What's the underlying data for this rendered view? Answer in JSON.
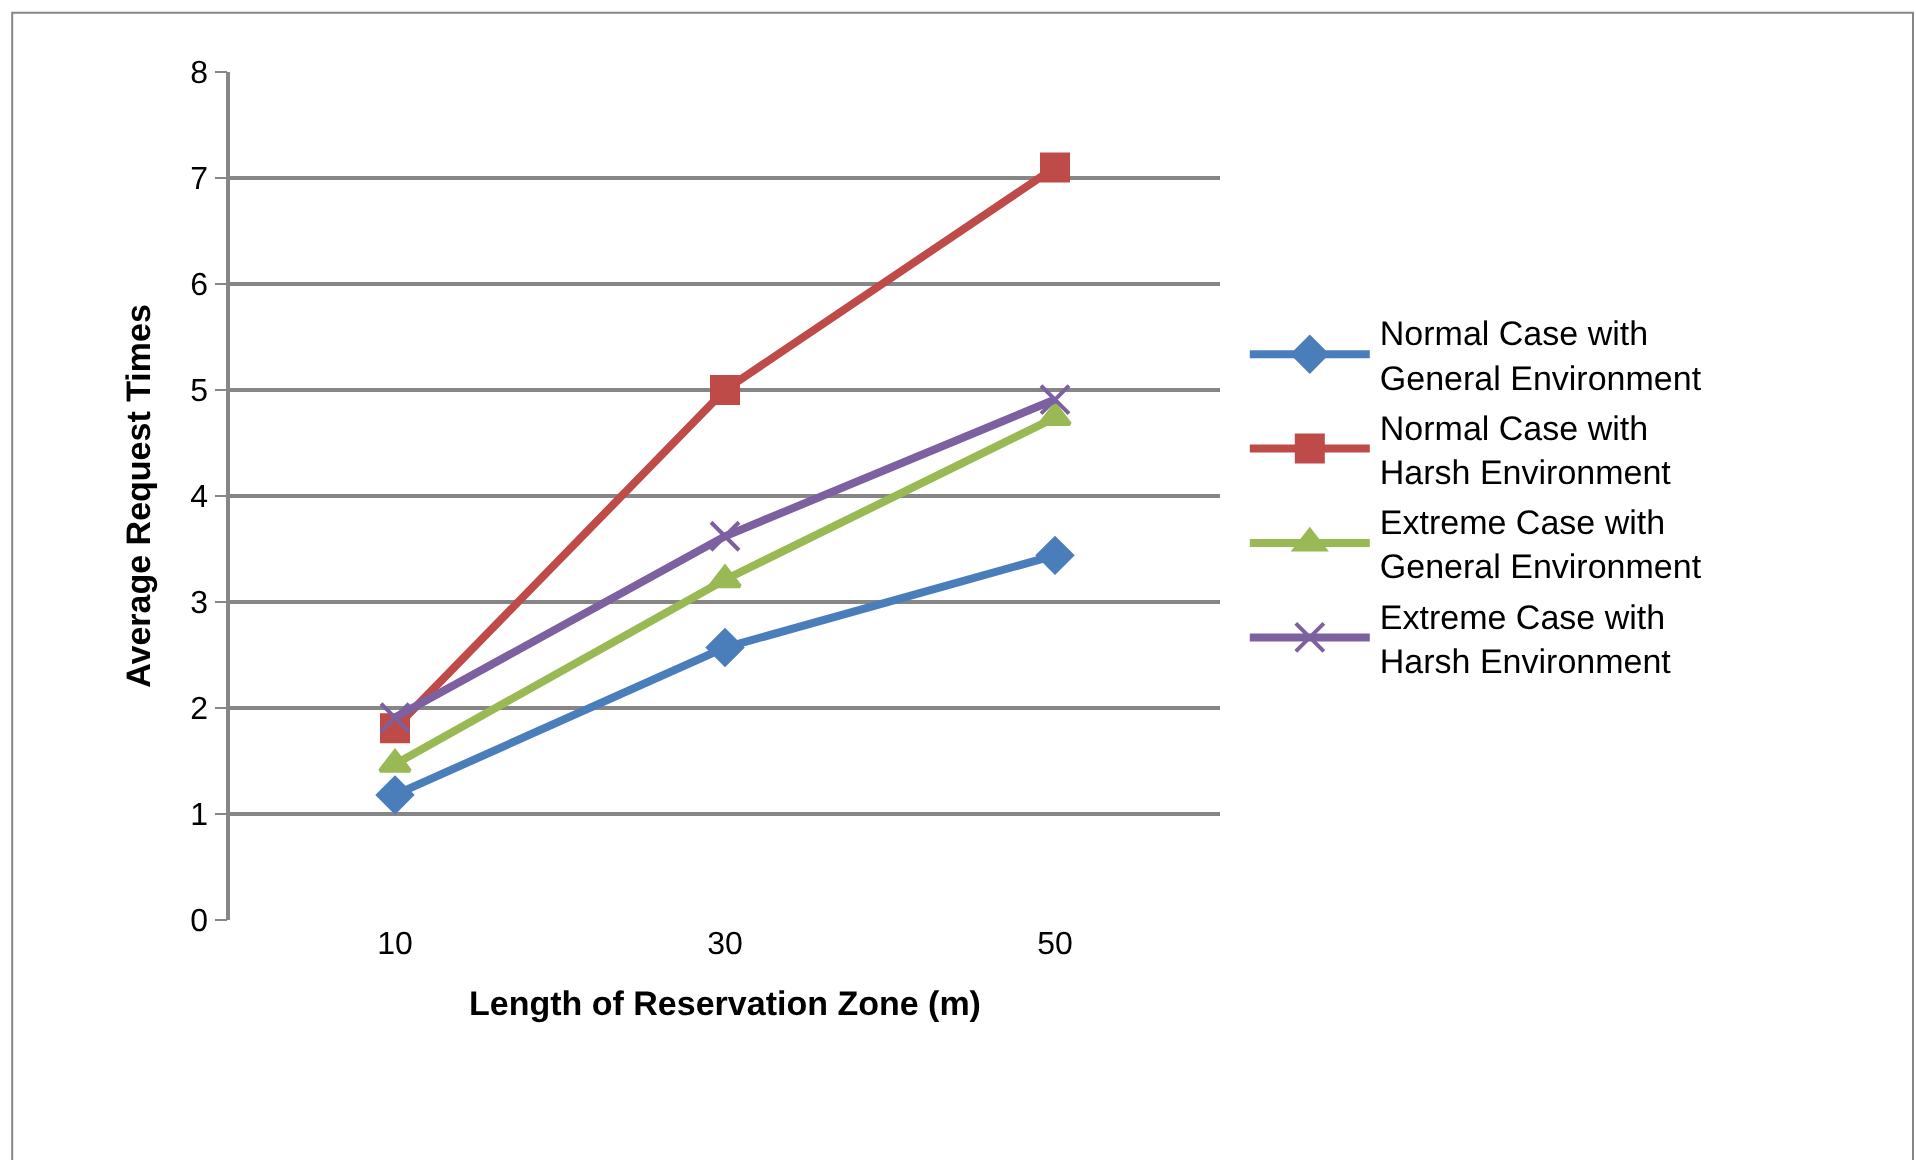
{
  "chart_data": {
    "type": "line",
    "xlabel": "Length of Reservation Zone (m)",
    "ylabel": "Average Request Times",
    "categories": [
      "10",
      "30",
      "50"
    ],
    "series": [
      {
        "name": "Normal Case with General Environment",
        "color": "#4a7ebb",
        "marker": "diamond",
        "values": [
          1.18,
          2.57,
          3.44
        ]
      },
      {
        "name": "Normal Case with Harsh Environment",
        "color": "#be4b48",
        "marker": "square",
        "values": [
          1.81,
          5.0,
          7.1
        ]
      },
      {
        "name": "Extreme Case with General Environment",
        "color": "#98b954",
        "marker": "triangle",
        "values": [
          1.47,
          3.21,
          4.74
        ]
      },
      {
        "name": "Extreme Case with Harsh Environment",
        "color": "#7d60a0",
        "marker": "cross",
        "values": [
          1.91,
          3.62,
          4.91
        ]
      }
    ],
    "ylim": [
      0,
      8
    ],
    "yticks": [
      0,
      1,
      2,
      3,
      4,
      5,
      6,
      7,
      8
    ],
    "grid": "y",
    "legend": "right",
    "line_style": "solid"
  }
}
